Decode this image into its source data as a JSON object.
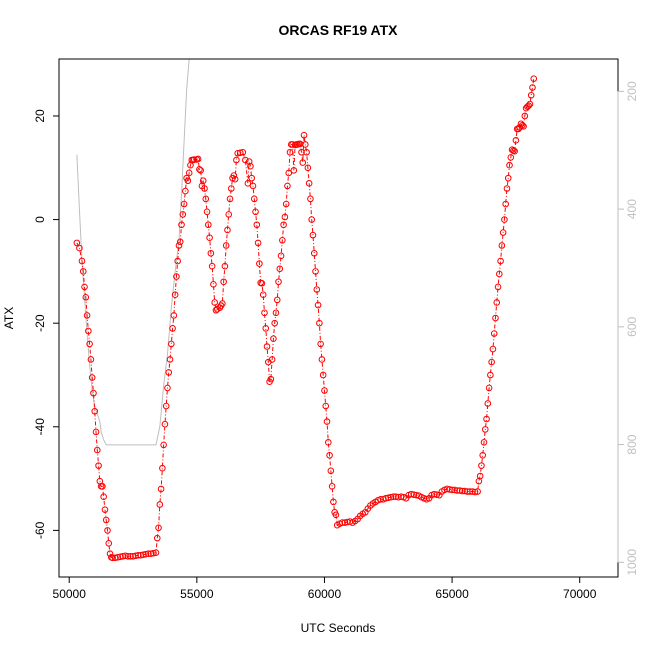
{
  "chart_data": {
    "type": "scatter",
    "title": "ORCAS RF19 ATX",
    "xlabel": "UTC Seconds",
    "ylabel": "ATX",
    "xlim": [
      49600,
      71500
    ],
    "ylim": [
      -69,
      31
    ],
    "x_ticks": [
      50000,
      55000,
      60000,
      65000,
      70000
    ],
    "y_ticks": [
      -60,
      -40,
      -20,
      0,
      20
    ],
    "y2_ticks": [
      1000,
      800,
      600,
      400,
      200
    ],
    "y2lim": [
      1025,
      145
    ],
    "y2_reversed": true,
    "grid": false,
    "legend": "none",
    "colors": {
      "atx": "#ff0000",
      "secondary": "#bebebe",
      "axis": "#000000",
      "right_axis": "#bebebe"
    },
    "series": [
      {
        "role": "ATX (left axis)",
        "style": "open-circles-dash-dot",
        "color": "#ff0000",
        "points": [
          [
            50300,
            -4.5
          ],
          [
            50400,
            -5.5
          ],
          [
            50500,
            -8
          ],
          [
            50550,
            -10
          ],
          [
            50600,
            -13
          ],
          [
            50650,
            -15
          ],
          [
            50700,
            -18.5
          ],
          [
            50750,
            -21.5
          ],
          [
            50800,
            -24
          ],
          [
            50850,
            -27
          ],
          [
            50900,
            -30.5
          ],
          [
            50950,
            -33.5
          ],
          [
            51000,
            -37
          ],
          [
            51050,
            -41
          ],
          [
            51100,
            -44.5
          ],
          [
            51150,
            -47.5
          ],
          [
            51200,
            -50.5
          ],
          [
            51250,
            -51.5
          ],
          [
            51300,
            -51.5
          ],
          [
            51350,
            -53.5
          ],
          [
            51400,
            -56
          ],
          [
            51450,
            -58
          ],
          [
            51500,
            -60
          ],
          [
            51550,
            -62.5
          ],
          [
            51600,
            -64.5
          ],
          [
            51650,
            -65.2
          ],
          [
            51700,
            -65.3
          ],
          [
            51800,
            -65.3
          ],
          [
            51900,
            -65.2
          ],
          [
            52000,
            -65.1
          ],
          [
            52100,
            -65
          ],
          [
            52200,
            -64.9
          ],
          [
            52300,
            -65
          ],
          [
            52400,
            -65
          ],
          [
            52500,
            -65
          ],
          [
            52600,
            -64.9
          ],
          [
            52700,
            -64.8
          ],
          [
            52800,
            -64.8
          ],
          [
            52900,
            -64.7
          ],
          [
            53000,
            -64.6
          ],
          [
            53100,
            -64.5
          ],
          [
            53200,
            -64.5
          ],
          [
            53300,
            -64.4
          ],
          [
            53400,
            -64.3
          ],
          [
            53450,
            -61.5
          ],
          [
            53500,
            -59.5
          ],
          [
            53550,
            -55
          ],
          [
            53600,
            -52
          ],
          [
            53650,
            -48
          ],
          [
            53700,
            -43.5
          ],
          [
            53750,
            -39.5
          ],
          [
            53800,
            -36
          ],
          [
            53850,
            -32.5
          ],
          [
            53900,
            -29.5
          ],
          [
            53950,
            -27
          ],
          [
            54000,
            -24
          ],
          [
            54050,
            -21
          ],
          [
            54100,
            -18.5
          ],
          [
            54150,
            -14.5
          ],
          [
            54200,
            -11
          ],
          [
            54250,
            -8
          ],
          [
            54300,
            -5
          ],
          [
            54350,
            -4.3
          ],
          [
            54400,
            -1
          ],
          [
            54450,
            1
          ],
          [
            54500,
            3
          ],
          [
            54550,
            5.5
          ],
          [
            54600,
            8
          ],
          [
            54650,
            7.5
          ],
          [
            54700,
            9
          ],
          [
            54750,
            10.5
          ],
          [
            54800,
            11.5
          ],
          [
            54850,
            11.5
          ],
          [
            54900,
            11.6
          ],
          [
            55000,
            11.6
          ],
          [
            55050,
            11.7
          ],
          [
            55100,
            9.7
          ],
          [
            55150,
            9.5
          ],
          [
            55200,
            6.5
          ],
          [
            55250,
            7.5
          ],
          [
            55300,
            6
          ],
          [
            55350,
            4
          ],
          [
            55400,
            1.5
          ],
          [
            55450,
            -1
          ],
          [
            55500,
            -3.5
          ],
          [
            55550,
            -6.5
          ],
          [
            55600,
            -9
          ],
          [
            55650,
            -12.5
          ],
          [
            55700,
            -16
          ],
          [
            55750,
            -17.5
          ],
          [
            55800,
            -17.3
          ],
          [
            55900,
            -17
          ],
          [
            55950,
            -16.6
          ],
          [
            56000,
            -16.2
          ],
          [
            56050,
            -12
          ],
          [
            56100,
            -9
          ],
          [
            56150,
            -5
          ],
          [
            56200,
            -2
          ],
          [
            56250,
            1
          ],
          [
            56300,
            4
          ],
          [
            56350,
            6
          ],
          [
            56400,
            8
          ],
          [
            56450,
            8.5
          ],
          [
            56500,
            7.8
          ],
          [
            56550,
            11.5
          ],
          [
            56600,
            12.8
          ],
          [
            56700,
            12.9
          ],
          [
            56800,
            13
          ],
          [
            56900,
            11.5
          ],
          [
            57000,
            7
          ],
          [
            57050,
            11.2
          ],
          [
            57100,
            10.3
          ],
          [
            57150,
            8
          ],
          [
            57200,
            6.5
          ],
          [
            57250,
            4
          ],
          [
            57300,
            1.5
          ],
          [
            57350,
            -1
          ],
          [
            57400,
            -4.5
          ],
          [
            57450,
            -8.5
          ],
          [
            57500,
            -12.2
          ],
          [
            57550,
            -12.3
          ],
          [
            57600,
            -14.5
          ],
          [
            57650,
            -18
          ],
          [
            57700,
            -21
          ],
          [
            57750,
            -24.5
          ],
          [
            57800,
            -27.5
          ],
          [
            57850,
            -31.3
          ],
          [
            57900,
            -30.8
          ],
          [
            57950,
            -27
          ],
          [
            58000,
            -23
          ],
          [
            58050,
            -20
          ],
          [
            58100,
            -18
          ],
          [
            58150,
            -15.5
          ],
          [
            58200,
            -12
          ],
          [
            58250,
            -9.5
          ],
          [
            58300,
            -7
          ],
          [
            58350,
            -4
          ],
          [
            58400,
            -1
          ],
          [
            58450,
            0.5
          ],
          [
            58500,
            3
          ],
          [
            58550,
            6.5
          ],
          [
            58600,
            9
          ],
          [
            58650,
            13
          ],
          [
            58700,
            14.5
          ],
          [
            58750,
            14.5
          ],
          [
            58800,
            9.5
          ],
          [
            58850,
            14.4
          ],
          [
            58900,
            14.5
          ],
          [
            58950,
            14.5
          ],
          [
            59000,
            14.6
          ],
          [
            59050,
            14.6
          ],
          [
            59100,
            13
          ],
          [
            59150,
            11
          ],
          [
            59200,
            16.3
          ],
          [
            59250,
            14.5
          ],
          [
            59300,
            13
          ],
          [
            59350,
            10
          ],
          [
            59400,
            7
          ],
          [
            59450,
            4
          ],
          [
            59500,
            0
          ],
          [
            59550,
            -3
          ],
          [
            59600,
            -6.5
          ],
          [
            59650,
            -10
          ],
          [
            59700,
            -13.5
          ],
          [
            59750,
            -16.5
          ],
          [
            59800,
            -20
          ],
          [
            59850,
            -24
          ],
          [
            59900,
            -27
          ],
          [
            59950,
            -30
          ],
          [
            60000,
            -33
          ],
          [
            60050,
            -36
          ],
          [
            60100,
            -39
          ],
          [
            60150,
            -43
          ],
          [
            60200,
            -45.5
          ],
          [
            60250,
            -48.5
          ],
          [
            60300,
            -51.5
          ],
          [
            60350,
            -54.5
          ],
          [
            60400,
            -56.5
          ],
          [
            60450,
            -57
          ],
          [
            60500,
            -59
          ],
          [
            60600,
            -58.7
          ],
          [
            60700,
            -58.5
          ],
          [
            60800,
            -58.5
          ],
          [
            60900,
            -58.4
          ],
          [
            61000,
            -58.3
          ],
          [
            61100,
            -58.5
          ],
          [
            61200,
            -58.2
          ],
          [
            61300,
            -57.8
          ],
          [
            61400,
            -57.2
          ],
          [
            61500,
            -56.8
          ],
          [
            61600,
            -56.5
          ],
          [
            61700,
            -55.8
          ],
          [
            61800,
            -55.2
          ],
          [
            61900,
            -54.8
          ],
          [
            62000,
            -54.5
          ],
          [
            62100,
            -54.2
          ],
          [
            62200,
            -54
          ],
          [
            62300,
            -54
          ],
          [
            62400,
            -53.8
          ],
          [
            62500,
            -53.7
          ],
          [
            62600,
            -53.6
          ],
          [
            62700,
            -53.5
          ],
          [
            62800,
            -53.5
          ],
          [
            62900,
            -53.6
          ],
          [
            63000,
            -53.5
          ],
          [
            63100,
            -53.6
          ],
          [
            63200,
            -53.8
          ],
          [
            63300,
            -53.2
          ],
          [
            63400,
            -53
          ],
          [
            63500,
            -53.1
          ],
          [
            63600,
            -53.2
          ],
          [
            63700,
            -53.3
          ],
          [
            63800,
            -53.6
          ],
          [
            63900,
            -53.8
          ],
          [
            64000,
            -54
          ],
          [
            64100,
            -53.8
          ],
          [
            64200,
            -53.2
          ],
          [
            64300,
            -53
          ],
          [
            64400,
            -53.1
          ],
          [
            64500,
            -53.2
          ],
          [
            64600,
            -52.5
          ],
          [
            64700,
            -52.2
          ],
          [
            64800,
            -52
          ],
          [
            64900,
            -52.1
          ],
          [
            65000,
            -52.2
          ],
          [
            65100,
            -52.2
          ],
          [
            65200,
            -52.3
          ],
          [
            65300,
            -52.3
          ],
          [
            65400,
            -52.4
          ],
          [
            65500,
            -52.4
          ],
          [
            65600,
            -52.5
          ],
          [
            65700,
            -52.5
          ],
          [
            65800,
            -52.5
          ],
          [
            65900,
            -52.6
          ],
          [
            66000,
            -52.5
          ],
          [
            66050,
            -50.5
          ],
          [
            66100,
            -49.5
          ],
          [
            66150,
            -47.5
          ],
          [
            66200,
            -45.5
          ],
          [
            66250,
            -43
          ],
          [
            66300,
            -40.5
          ],
          [
            66350,
            -38.5
          ],
          [
            66400,
            -35.5
          ],
          [
            66450,
            -32.5
          ],
          [
            66500,
            -30
          ],
          [
            66550,
            -27.5
          ],
          [
            66600,
            -25
          ],
          [
            66650,
            -22
          ],
          [
            66700,
            -19
          ],
          [
            66750,
            -16
          ],
          [
            66800,
            -13
          ],
          [
            66850,
            -10.5
          ],
          [
            66900,
            -8
          ],
          [
            66950,
            -5
          ],
          [
            67000,
            -2.5
          ],
          [
            67050,
            0
          ],
          [
            67100,
            3
          ],
          [
            67150,
            6
          ],
          [
            67200,
            8
          ],
          [
            67250,
            10.5
          ],
          [
            67300,
            12
          ],
          [
            67350,
            13.5
          ],
          [
            67400,
            13.3
          ],
          [
            67450,
            13.2
          ],
          [
            67500,
            15.3
          ],
          [
            67550,
            17.5
          ],
          [
            67600,
            17.5
          ],
          [
            67650,
            17.8
          ],
          [
            67700,
            18.5
          ],
          [
            67750,
            18.2
          ],
          [
            67800,
            18
          ],
          [
            67850,
            20
          ],
          [
            67900,
            21.5
          ],
          [
            67950,
            21.8
          ],
          [
            68000,
            22
          ],
          [
            68050,
            22.3
          ],
          [
            68100,
            24
          ],
          [
            68150,
            25.5
          ],
          [
            68200,
            27.2
          ]
        ]
      },
      {
        "role": "secondary (right axis)",
        "style": "line",
        "color": "#bebebe",
        "points": [
          [
            50300,
            12.5
          ],
          [
            50400,
            2
          ],
          [
            50500,
            -8
          ],
          [
            50600,
            -15
          ],
          [
            50700,
            -22
          ],
          [
            50800,
            -28
          ],
          [
            50900,
            -33
          ],
          [
            51000,
            -36
          ],
          [
            51100,
            -37.5
          ],
          [
            51200,
            -39
          ],
          [
            51250,
            -41
          ],
          [
            51350,
            -42.5
          ],
          [
            51450,
            -43.5
          ],
          [
            53400,
            -43.5
          ],
          [
            53550,
            -40
          ],
          [
            53700,
            -32
          ],
          [
            53850,
            -26
          ],
          [
            54000,
            -17
          ],
          [
            54150,
            -10
          ],
          [
            54300,
            -4
          ],
          [
            54400,
            5
          ],
          [
            54500,
            15
          ],
          [
            54600,
            25
          ],
          [
            54700,
            31
          ]
        ]
      }
    ]
  }
}
